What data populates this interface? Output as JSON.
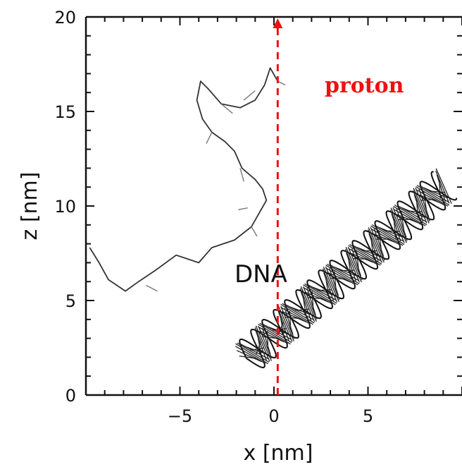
{
  "figure": {
    "xlabel": "x  [nm]",
    "ylabel": "z  [nm]",
    "xlim": [
      -10,
      10
    ],
    "ylim": [
      0,
      20
    ],
    "x_ticks": [
      -5,
      0,
      5
    ],
    "y_ticks": [
      0,
      5,
      10,
      15,
      20
    ],
    "x_tick_labels": [
      "−5",
      "0",
      "5"
    ],
    "y_tick_labels": [
      "0",
      "5",
      "10",
      "15",
      "20"
    ],
    "labels": {
      "proton": "proton",
      "dna": "DNA"
    },
    "colors": {
      "proton_track": "#ee1111",
      "trajectory": "#333333",
      "axes": "#111111"
    }
  },
  "chart_data": {
    "type": "line",
    "xlabel": "x  [nm]",
    "ylabel": "z  [nm]",
    "xlim": [
      -10,
      10
    ],
    "ylim": [
      0,
      20
    ],
    "series": [
      {
        "name": "proton",
        "x": [
          0.2,
          0.2
        ],
        "y": [
          0,
          20
        ]
      },
      {
        "x": [
          -9.8,
          -9.3,
          -8.8,
          -7.9,
          -7.2,
          -6.3,
          -5.2,
          -4.0,
          -3.3,
          -2.1,
          -1.2,
          -0.8,
          -0.4,
          -0.6,
          -1.0,
          -1.7,
          -2.1,
          -2.6,
          -3.3,
          -3.8,
          -4.1,
          -3.9,
          -3.5,
          -2.8,
          -1.8,
          -1.0,
          -0.5,
          -0.2,
          0.2
        ],
        "y": [
          7.8,
          7.0,
          6.1,
          5.5,
          6.0,
          6.6,
          7.4,
          7.0,
          7.8,
          8.2,
          8.9,
          9.6,
          10.3,
          10.9,
          11.4,
          12.0,
          12.9,
          13.4,
          13.9,
          14.6,
          15.6,
          16.6,
          16.2,
          15.4,
          15.2,
          15.6,
          16.4,
          17.3,
          16.6
        ]
      }
    ],
    "annotations": [
      "proton",
      "DNA"
    ]
  }
}
